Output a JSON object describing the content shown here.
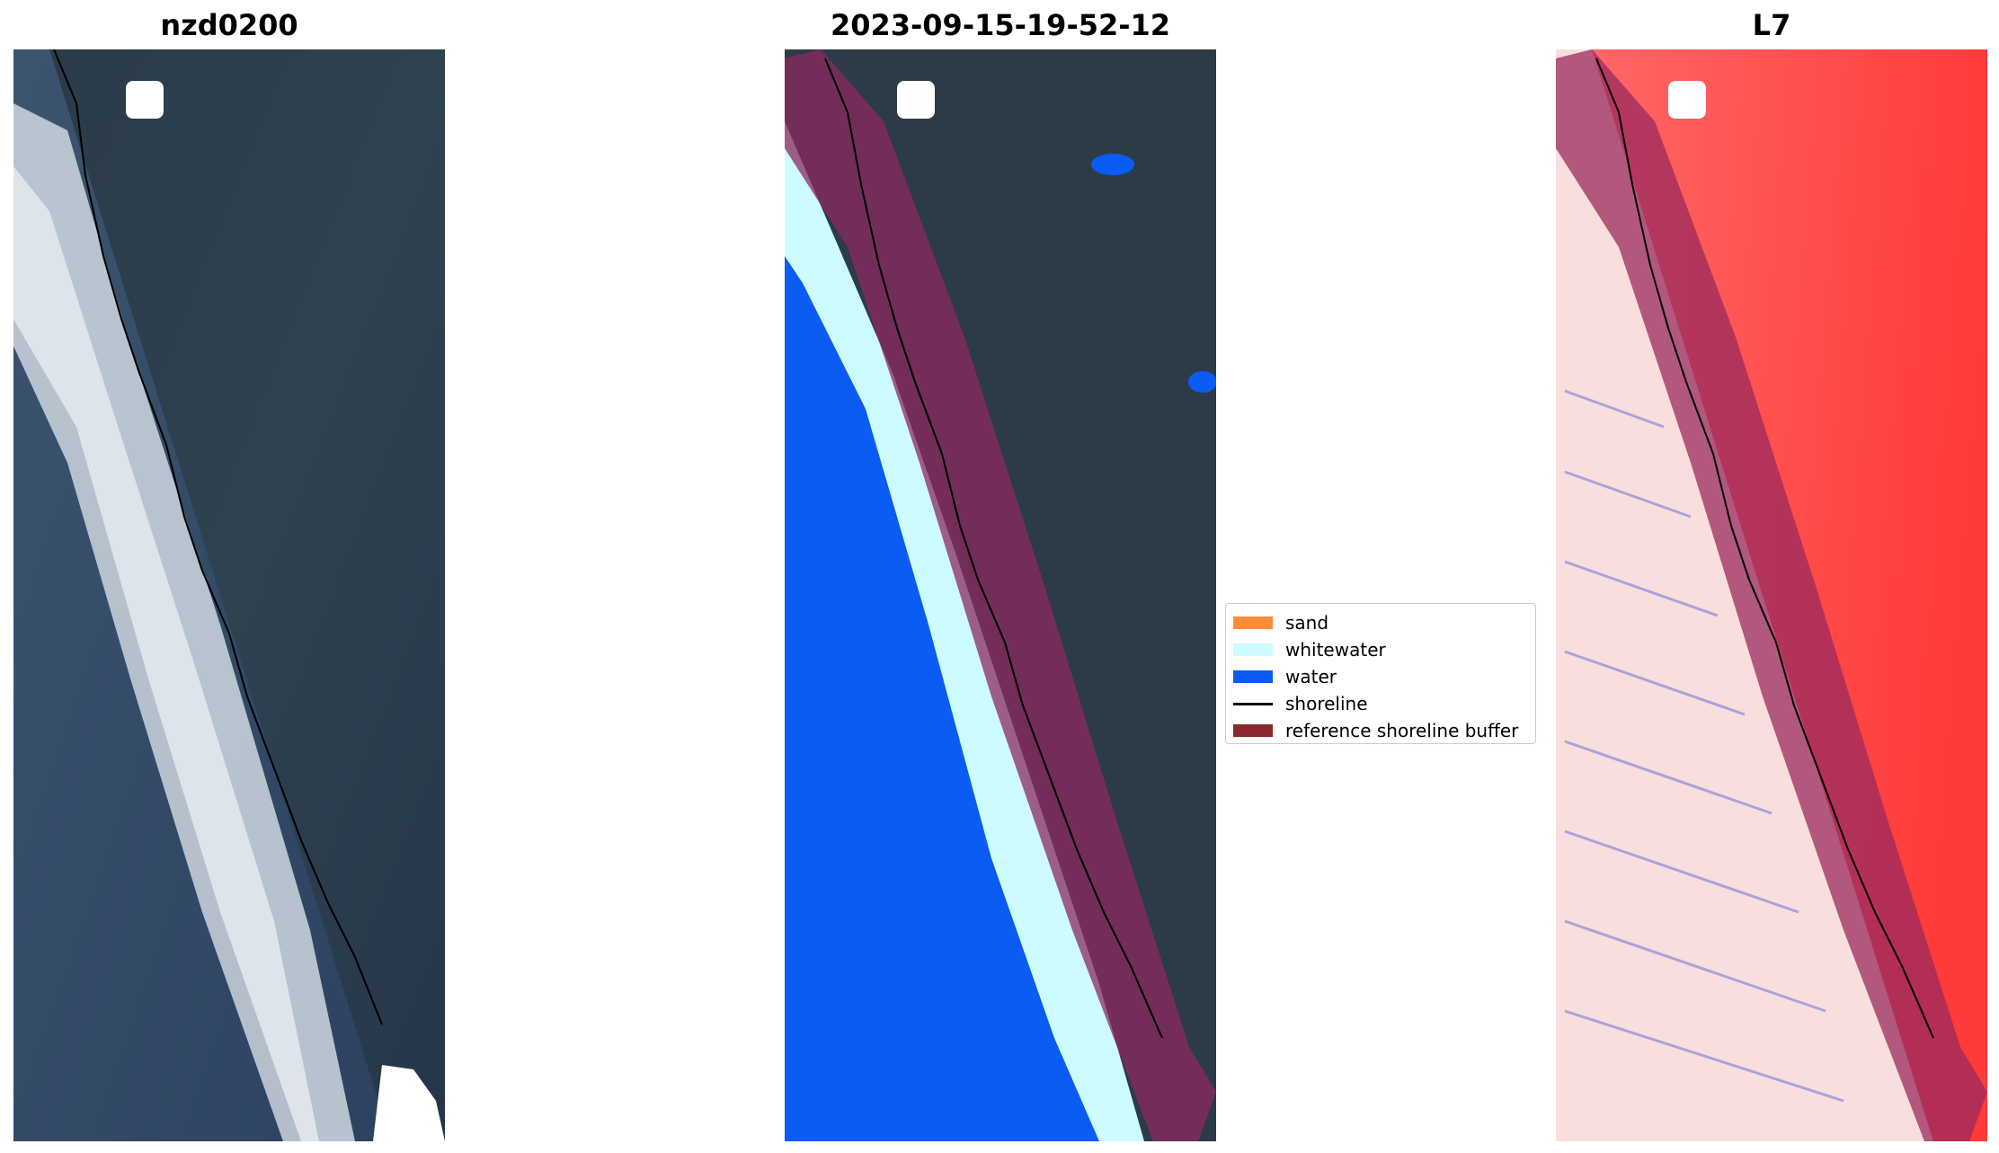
{
  "panels": {
    "left_title": "nzd0200",
    "middle_title": "2023-09-15-19-52-12",
    "right_title": "L7"
  },
  "legend": {
    "items": [
      {
        "label": "sand",
        "color": "#ff8c3a",
        "kind": "patch"
      },
      {
        "label": "whitewater",
        "color": "#ccfcff",
        "kind": "patch"
      },
      {
        "label": "water",
        "color": "#0a5cf5",
        "kind": "patch"
      },
      {
        "label": "shoreline",
        "color": "#000000",
        "kind": "line"
      },
      {
        "label": "reference shoreline buffer",
        "color": "#8b2830",
        "kind": "patch"
      }
    ]
  },
  "colors": {
    "land": "#2b3a4c",
    "ocean": "#2e4866",
    "surf": "#dfe6ef",
    "class_water": "#0a5cf5",
    "class_whitewater": "#ccfcff",
    "buffer_overlay": "#8b2a5e",
    "index_high": "#ff3030",
    "index_low": "#fbe4e4"
  }
}
